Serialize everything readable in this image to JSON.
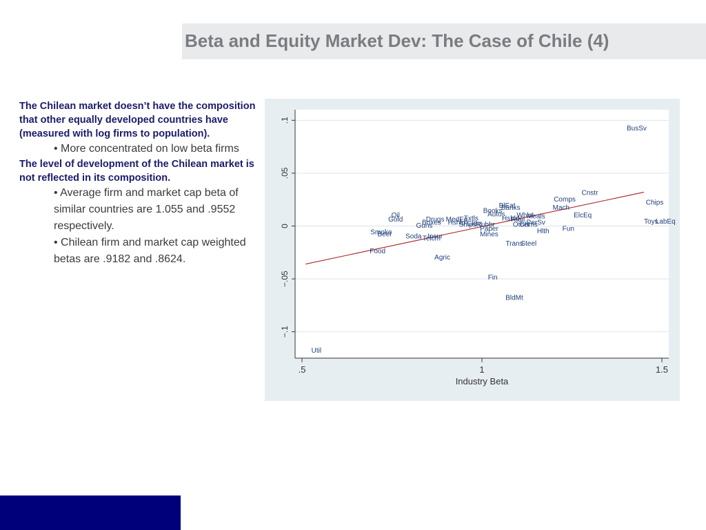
{
  "slide": {
    "title": "Beta and Equity Market Dev: The Case of Chile (4)",
    "paragraphs": [
      {
        "kind": "bold",
        "text": "The Chilean market doesn’t have the composition that other equally developed countries have (measured with log firms to population)."
      },
      {
        "kind": "bullet",
        "text": "• More concentrated on low beta firms"
      },
      {
        "kind": "bold",
        "text": "The level of development of the Chilean market is not reflected in its composition."
      },
      {
        "kind": "bullet",
        "text": "• Average firm and market cap beta of similar countries are 1.055 and .9552 respectively."
      },
      {
        "kind": "bullet",
        "text": "• Chilean firm and market cap weighted betas are .9182 and .8624."
      }
    ],
    "colors": {
      "bold_text": "#1b1b6b",
      "bullet_text": "#3a3a3a",
      "title_text": "#7a7c80",
      "title_bar": "#e9eaec",
      "chart_panel": "#e7eef2",
      "footer_bar": "#00007a",
      "point_labels": "#1f3f7a",
      "fit_line": "#b03030"
    }
  },
  "chart_data": {
    "type": "scatter",
    "title": "",
    "xlabel": "Industry Beta",
    "ylabel": "",
    "xlim": [
      0.5,
      1.5
    ],
    "ylim": [
      -0.125,
      0.11
    ],
    "xticks": [
      {
        "v": 0.5,
        "label": ".5"
      },
      {
        "v": 1.0,
        "label": "1"
      },
      {
        "v": 1.5,
        "label": "1.5"
      }
    ],
    "yticks": [
      {
        "v": 0.1,
        "label": ".1"
      },
      {
        "v": 0.05,
        "label": ".05"
      },
      {
        "v": 0.0,
        "label": "0"
      },
      {
        "v": -0.05,
        "label": "−.05"
      },
      {
        "v": -0.1,
        "label": "−.1"
      }
    ],
    "grid": true,
    "fit_line": {
      "x": [
        0.51,
        1.45
      ],
      "y": [
        -0.036,
        0.032
      ]
    },
    "points": [
      {
        "label": "BusSv",
        "x": 1.43,
        "y": 0.092
      },
      {
        "label": "Cnstr",
        "x": 1.3,
        "y": 0.031
      },
      {
        "label": "Comps",
        "x": 1.23,
        "y": 0.025
      },
      {
        "label": "Chips",
        "x": 1.48,
        "y": 0.022
      },
      {
        "label": "Mach",
        "x": 1.22,
        "y": 0.017
      },
      {
        "label": "ElcEq",
        "x": 1.28,
        "y": 0.01
      },
      {
        "label": "Toys",
        "x": 1.47,
        "y": 0.004
      },
      {
        "label": "LabEq",
        "x": 1.51,
        "y": 0.004
      },
      {
        "label": "Fun",
        "x": 1.24,
        "y": -0.003
      },
      {
        "label": "BlEat",
        "x": 1.07,
        "y": 0.019
      },
      {
        "label": "Banks",
        "x": 1.08,
        "y": 0.017
      },
      {
        "label": "Books",
        "x": 1.03,
        "y": 0.014
      },
      {
        "label": "Autos",
        "x": 1.04,
        "y": 0.011
      },
      {
        "label": "Whlsl",
        "x": 1.12,
        "y": 0.01
      },
      {
        "label": "Meals",
        "x": 1.15,
        "y": 0.009
      },
      {
        "label": "Hshld",
        "x": 1.08,
        "y": 0.007
      },
      {
        "label": "Rtail",
        "x": 1.1,
        "y": 0.006
      },
      {
        "label": "PerSv",
        "x": 1.15,
        "y": 0.003
      },
      {
        "label": "Other",
        "x": 1.11,
        "y": 0.001
      },
      {
        "label": "Chms",
        "x": 1.13,
        "y": 0.001
      },
      {
        "label": "Hlth",
        "x": 1.17,
        "y": -0.005
      },
      {
        "label": "Oil",
        "x": 0.76,
        "y": 0.01
      },
      {
        "label": "Gold",
        "x": 0.76,
        "y": 0.006
      },
      {
        "label": "Drugs",
        "x": 0.87,
        "y": 0.006
      },
      {
        "label": "MedEq",
        "x": 0.93,
        "y": 0.006
      },
      {
        "label": "Txtls",
        "x": 0.97,
        "y": 0.007
      },
      {
        "label": "Boxes",
        "x": 0.86,
        "y": 0.003
      },
      {
        "label": "Hshld",
        "x": 0.93,
        "y": 0.003
      },
      {
        "label": "Clths",
        "x": 0.98,
        "y": 0.002
      },
      {
        "label": "Guns",
        "x": 0.84,
        "y": 0.0
      },
      {
        "label": "Ships",
        "x": 0.96,
        "y": 0.001
      },
      {
        "label": "Rubbr",
        "x": 1.01,
        "y": 0.001
      },
      {
        "label": "Paper",
        "x": 1.02,
        "y": -0.003
      },
      {
        "label": "Mines",
        "x": 1.02,
        "y": -0.008
      },
      {
        "label": "Smoke",
        "x": 0.72,
        "y": -0.006
      },
      {
        "label": "Beer",
        "x": 0.73,
        "y": -0.008
      },
      {
        "label": "Soda",
        "x": 0.81,
        "y": -0.01
      },
      {
        "label": "Insur",
        "x": 0.87,
        "y": -0.01
      },
      {
        "label": "Telcm",
        "x": 0.86,
        "y": -0.012
      },
      {
        "label": "Trans",
        "x": 1.09,
        "y": -0.017
      },
      {
        "label": "Steel",
        "x": 1.13,
        "y": -0.017
      },
      {
        "label": "Food",
        "x": 0.71,
        "y": -0.024
      },
      {
        "label": "Agric",
        "x": 0.89,
        "y": -0.03
      },
      {
        "label": "Fin",
        "x": 1.03,
        "y": -0.049
      },
      {
        "label": "BldMt",
        "x": 1.09,
        "y": -0.068
      },
      {
        "label": "Util",
        "x": 0.54,
        "y": -0.118
      }
    ]
  }
}
